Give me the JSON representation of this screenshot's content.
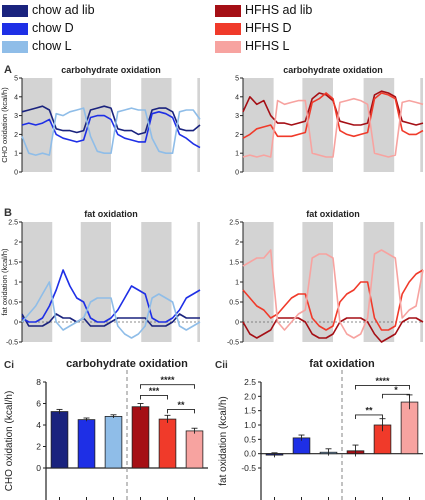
{
  "legend": {
    "left": [
      {
        "label": "chow ad lib",
        "color": "#1a237e"
      },
      {
        "label": "chow D",
        "color": "#1e2fe6"
      },
      {
        "label": "chow L",
        "color": "#8fbde8"
      }
    ],
    "right": [
      {
        "label": "HFHS ad lib",
        "color": "#a50f15"
      },
      {
        "label": "HFHS D",
        "color": "#f03a2a"
      },
      {
        "label": "HFHS L",
        "color": "#f7a3a0"
      }
    ]
  },
  "panels": {
    "A": "A",
    "B": "B",
    "Ci": "Ci",
    "Cii": "Cii"
  },
  "colors": {
    "chow_ad_lib": "#1a237e",
    "chow_D": "#1e2fe6",
    "chow_L": "#8fbde8",
    "HFHS_ad_lib": "#a50f15",
    "HFHS_D": "#f03a2a",
    "HFHS_L": "#f7a3a0",
    "dark_phase": "#d3d3d3"
  },
  "chart_data": [
    {
      "id": "A-left",
      "type": "line",
      "title": "carbohydrate oxidation",
      "ylabel": "CHO oxidation (kcal/h)",
      "ylim": [
        0,
        5
      ],
      "yticks": [
        0,
        1,
        2,
        3,
        4,
        5
      ],
      "shading": "alternating dark phases",
      "series": [
        {
          "name": "chow ad lib",
          "color": "#1a237e",
          "values": [
            3.2,
            3.3,
            3.4,
            3.5,
            3.3,
            2.3,
            2.2,
            2.2,
            2.1,
            2.2,
            3.3,
            3.4,
            3.5,
            3.4,
            2.3,
            2.2,
            2.2,
            2.0,
            2.1,
            3.3,
            3.4,
            3.4,
            3.2,
            2.3,
            2.2,
            2.2,
            2.5
          ]
        },
        {
          "name": "chow D",
          "color": "#1e2fe6",
          "values": [
            2.5,
            2.6,
            2.5,
            2.6,
            2.8,
            2.0,
            1.8,
            1.7,
            1.6,
            1.7,
            2.9,
            3.0,
            3.0,
            2.8,
            2.0,
            1.8,
            1.7,
            1.6,
            1.6,
            3.1,
            3.2,
            3.1,
            2.9,
            2.0,
            1.8,
            1.5,
            1.3
          ]
        },
        {
          "name": "chow L",
          "color": "#8fbde8",
          "values": [
            1.9,
            1.0,
            0.9,
            1.0,
            0.9,
            3.1,
            3.0,
            3.2,
            3.3,
            3.4,
            1.9,
            1.1,
            1.0,
            1.0,
            3.2,
            3.3,
            3.4,
            3.3,
            3.3,
            1.8,
            1.1,
            1.0,
            1.0,
            3.2,
            3.3,
            3.3,
            2.8
          ]
        }
      ]
    },
    {
      "id": "A-right",
      "type": "line",
      "title": "carbohydrate oxidation",
      "ylim": [
        0,
        5
      ],
      "series": [
        {
          "name": "HFHS ad lib",
          "color": "#a50f15",
          "values": [
            3.2,
            4.0,
            3.6,
            3.8,
            3.0,
            2.6,
            2.6,
            2.5,
            2.6,
            2.7,
            3.9,
            4.2,
            4.1,
            3.8,
            2.7,
            2.6,
            2.5,
            2.5,
            2.6,
            4.1,
            4.3,
            4.2,
            4.0,
            2.7,
            2.6,
            2.5,
            2.6
          ]
        },
        {
          "name": "HFHS D",
          "color": "#f03a2a",
          "values": [
            1.8,
            2.0,
            2.3,
            2.4,
            2.5,
            1.9,
            1.9,
            1.9,
            2.0,
            2.1,
            3.7,
            3.9,
            4.2,
            3.9,
            2.2,
            2.0,
            1.9,
            2.0,
            2.1,
            3.9,
            4.2,
            4.1,
            3.9,
            2.2,
            2.0,
            2.0,
            2.2
          ]
        },
        {
          "name": "HFHS L",
          "color": "#f7a3a0",
          "values": [
            0.8,
            0.9,
            0.8,
            0.9,
            0.8,
            3.8,
            3.6,
            3.7,
            3.8,
            3.8,
            1.0,
            0.9,
            0.8,
            0.8,
            3.7,
            3.8,
            3.9,
            3.8,
            3.6,
            1.0,
            0.9,
            0.8,
            0.9,
            3.7,
            3.8,
            3.7,
            3.6
          ]
        }
      ]
    },
    {
      "id": "B-left",
      "type": "line",
      "title": "fat oxidation",
      "ylabel": "fat oxidation (kcal/h)",
      "ylim": [
        -0.5,
        2.5
      ],
      "yticks": [
        -0.5,
        0,
        0.5,
        1,
        1.5,
        2,
        2.5
      ],
      "series": [
        {
          "name": "chow ad lib",
          "color": "#1a237e",
          "values": [
            0.2,
            -0.1,
            -0.1,
            -0.1,
            0.0,
            0.2,
            0.1,
            0.1,
            0.0,
            0.1,
            -0.1,
            -0.1,
            -0.1,
            0.0,
            0.1,
            0.1,
            0.1,
            0.1,
            0.1,
            -0.1,
            -0.1,
            -0.1,
            0.0,
            0.2,
            0.1,
            0.1,
            0.1
          ]
        },
        {
          "name": "chow D",
          "color": "#1e2fe6",
          "values": [
            0.1,
            0.0,
            0.0,
            0.1,
            0.4,
            0.8,
            1.3,
            0.9,
            0.6,
            0.5,
            0.1,
            0.0,
            0.0,
            0.1,
            0.3,
            0.6,
            0.9,
            0.8,
            0.7,
            0.1,
            0.0,
            0.0,
            0.1,
            0.3,
            0.6,
            0.7,
            0.8
          ]
        },
        {
          "name": "chow L",
          "color": "#8fbde8",
          "values": [
            0.0,
            0.2,
            0.4,
            0.7,
            1.0,
            0.0,
            -0.2,
            -0.1,
            0.0,
            0.1,
            0.5,
            0.6,
            0.6,
            0.6,
            -0.1,
            -0.3,
            -0.4,
            -0.3,
            -0.1,
            0.6,
            0.7,
            0.6,
            0.5,
            -0.1,
            -0.2,
            -0.1,
            0.0
          ]
        }
      ]
    },
    {
      "id": "B-right",
      "type": "line",
      "title": "fat oxidation",
      "ylim": [
        -0.5,
        2.5
      ],
      "series": [
        {
          "name": "HFHS ad lib",
          "color": "#a50f15",
          "values": [
            0.0,
            -0.3,
            -0.4,
            -0.3,
            -0.2,
            0.1,
            0.1,
            0.1,
            0.1,
            0.0,
            -0.3,
            -0.4,
            -0.4,
            -0.3,
            0.0,
            0.1,
            0.1,
            0.1,
            0.0,
            -0.3,
            -0.5,
            -0.4,
            -0.3,
            0.0,
            0.1,
            0.1,
            0.0
          ]
        },
        {
          "name": "HFHS D",
          "color": "#f03a2a",
          "values": [
            0.8,
            0.6,
            0.4,
            0.3,
            0.1,
            0.2,
            0.4,
            0.6,
            0.7,
            0.7,
            0.1,
            -0.1,
            -0.2,
            -0.1,
            0.5,
            0.7,
            0.8,
            1.0,
            1.0,
            0.1,
            -0.2,
            -0.2,
            -0.1,
            0.7,
            1.0,
            1.2,
            1.3
          ]
        },
        {
          "name": "HFHS L",
          "color": "#f7a3a0",
          "values": [
            1.4,
            1.5,
            1.6,
            1.6,
            1.8,
            0.0,
            -0.2,
            0.0,
            0.2,
            0.3,
            1.6,
            1.7,
            1.7,
            1.6,
            0.0,
            -0.3,
            -0.4,
            -0.3,
            0.1,
            1.7,
            1.8,
            1.7,
            1.6,
            0.1,
            0.3,
            0.4,
            1.3
          ]
        }
      ]
    },
    {
      "id": "Ci",
      "type": "bar",
      "title": "carbohydrate oxidation",
      "ylabel": "CHO oxidation (kcal/h)",
      "ylim": [
        0,
        8
      ],
      "yticks": [
        0,
        2,
        4,
        6,
        8
      ],
      "categories": [
        "chow ad lib",
        "chow D",
        "chow L",
        "HFHS ad lib",
        "HFHS D",
        "HFHS L"
      ],
      "values": [
        5.25,
        4.5,
        4.8,
        5.7,
        4.55,
        3.45
      ],
      "errors": [
        0.2,
        0.15,
        0.15,
        0.3,
        0.35,
        0.25
      ],
      "significance": [
        {
          "from": 3,
          "to": 4,
          "label": "***"
        },
        {
          "from": 3,
          "to": 5,
          "label": "****"
        },
        {
          "from": 4,
          "to": 5,
          "label": "**"
        }
      ]
    },
    {
      "id": "Cii",
      "type": "bar",
      "title": "fat oxidation",
      "ylabel": "fat oxidation (kcal/h)",
      "ylim": [
        -0.5,
        2.5
      ],
      "yticks": [
        -0.5,
        0.0,
        0.5,
        1.0,
        1.5,
        2.0,
        2.5
      ],
      "categories": [
        "chow ad lib",
        "chow D",
        "chow L",
        "HFHS ad lib",
        "HFHS D",
        "HFHS L"
      ],
      "values": [
        -0.05,
        0.55,
        0.05,
        0.1,
        1.0,
        1.8
      ],
      "errors": [
        0.08,
        0.1,
        0.12,
        0.2,
        0.22,
        0.25
      ],
      "significance": [
        {
          "from": 3,
          "to": 4,
          "label": "**"
        },
        {
          "from": 4,
          "to": 5,
          "label": "*"
        },
        {
          "from": 3,
          "to": 5,
          "label": "****"
        }
      ]
    }
  ]
}
